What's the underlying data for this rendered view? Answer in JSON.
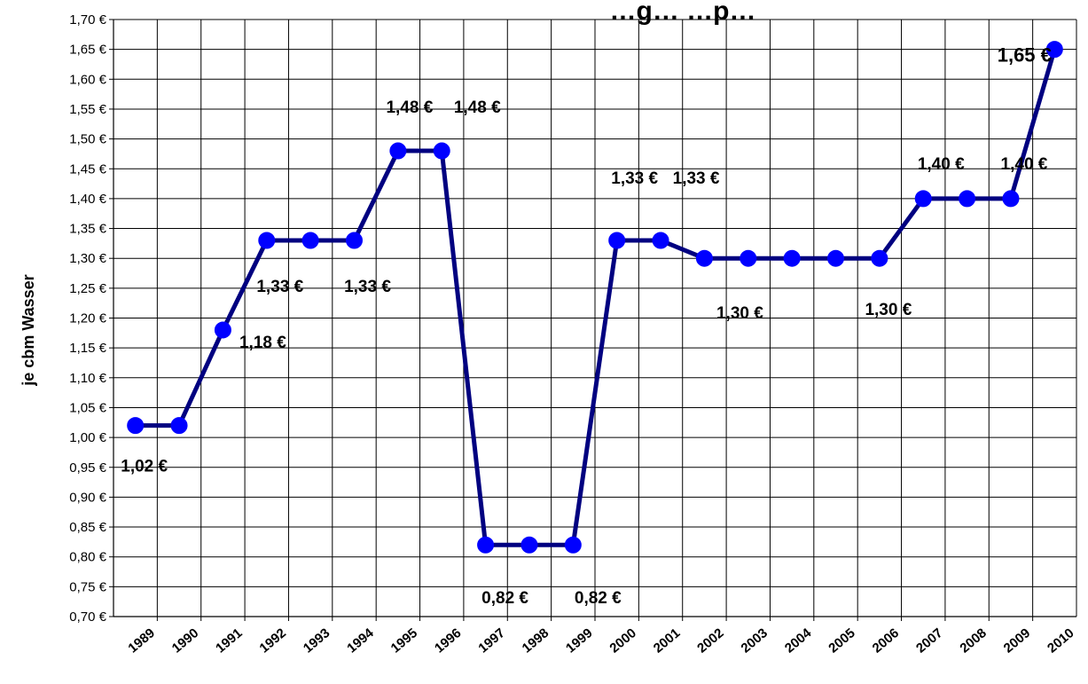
{
  "chart_data": {
    "type": "line",
    "title": "…g… …p…",
    "xlabel": "",
    "ylabel": "je cbm Wasser",
    "ylim": [
      0.7,
      1.7
    ],
    "y_step": 0.05,
    "y_tick_labels": [
      "0,70 €",
      "0,75 €",
      "0,80 €",
      "0,85 €",
      "0,90 €",
      "0,95 €",
      "1,00 €",
      "1,05 €",
      "1,10 €",
      "1,15 €",
      "1,20 €",
      "1,25 €",
      "1,30 €",
      "1,35 €",
      "1,40 €",
      "1,45 €",
      "1,50 €",
      "1,55 €",
      "1,60 €",
      "1,65 €",
      "1,70 €"
    ],
    "categories": [
      "1989",
      "1990",
      "1991",
      "1992",
      "1993",
      "1994",
      "1995",
      "1996",
      "1997",
      "1998",
      "1999",
      "2000",
      "2001",
      "2002",
      "2003",
      "2004",
      "2005",
      "2006",
      "2007",
      "2008",
      "2009",
      "2010"
    ],
    "grid": true,
    "legend": "none",
    "series": [
      {
        "color": "#000080",
        "marker_color": "#0000ff",
        "values": [
          1.02,
          1.02,
          1.18,
          1.33,
          1.33,
          1.33,
          1.48,
          1.48,
          0.82,
          0.82,
          0.82,
          1.33,
          1.33,
          1.3,
          1.3,
          1.3,
          1.3,
          1.3,
          1.4,
          1.4,
          1.4,
          1.65
        ]
      }
    ],
    "data_labels": [
      {
        "index": 0,
        "text": "1,02 €"
      },
      {
        "index": 2,
        "text": "1,18 €"
      },
      {
        "index": 3,
        "text": "1,33 €"
      },
      {
        "index": 5,
        "text": "1,33 €"
      },
      {
        "index": 6,
        "text": "1,48 €"
      },
      {
        "index": 7,
        "text": "1,48 €"
      },
      {
        "index": 8,
        "text": "0,82 €"
      },
      {
        "index": 10,
        "text": "0,82 €"
      },
      {
        "index": 11,
        "text": "1,33 €"
      },
      {
        "index": 12,
        "text": "1,33 €"
      },
      {
        "index": 13,
        "text": "1,30 €"
      },
      {
        "index": 17,
        "text": "1,30 €"
      },
      {
        "index": 18,
        "text": "1,40 €"
      },
      {
        "index": 20,
        "text": "1,40 €"
      },
      {
        "index": 21,
        "text": "1,65 €"
      }
    ]
  }
}
